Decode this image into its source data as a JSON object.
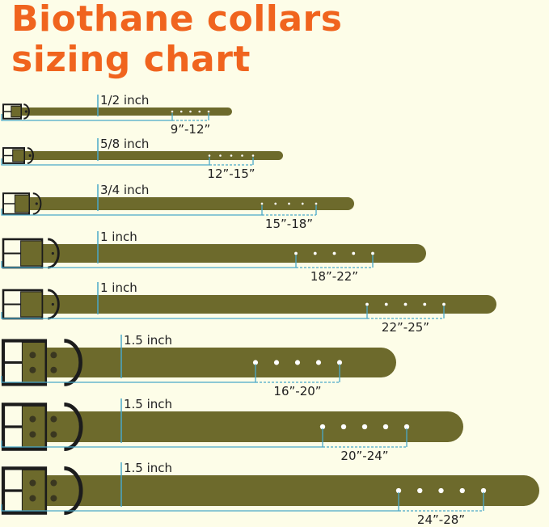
{
  "title": {
    "line1": "Biothane collars",
    "line2": "sizing chart"
  },
  "colors": {
    "title": "#f0641e",
    "strap": "#6d6a2c",
    "measure_line": "#4aa8c8",
    "hardware": "#1c1c1c",
    "background": "#fdfde8"
  },
  "collars": [
    {
      "width_label": "1/2 inch",
      "size_range": "9”-12”",
      "holes": 5
    },
    {
      "width_label": "5/8 inch",
      "size_range": "12”-15”",
      "holes": 5
    },
    {
      "width_label": "3/4 inch",
      "size_range": "15”-18”",
      "holes": 5
    },
    {
      "width_label": "1 inch",
      "size_range": "18”-22”",
      "holes": 5
    },
    {
      "width_label": "1 inch",
      "size_range": "22”-25”",
      "holes": 5
    },
    {
      "width_label": "1.5 inch",
      "size_range": "16”-20”",
      "holes": 5
    },
    {
      "width_label": "1.5 inch",
      "size_range": "20”-24”",
      "holes": 5
    },
    {
      "width_label": "1.5 inch",
      "size_range": "24”-28”",
      "holes": 5
    }
  ]
}
